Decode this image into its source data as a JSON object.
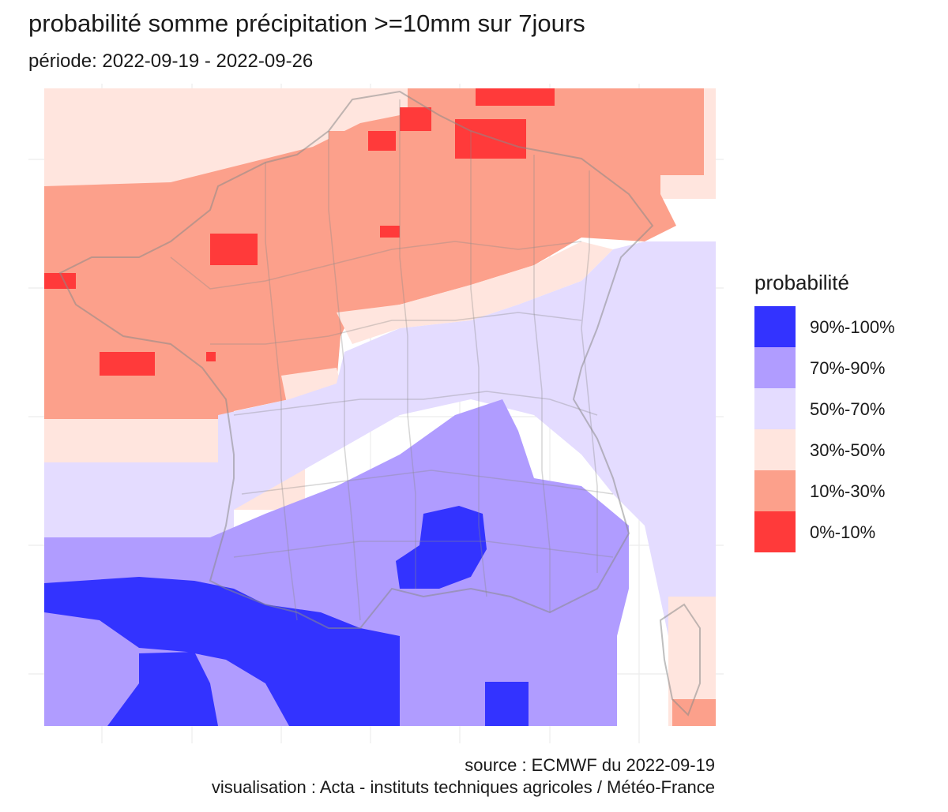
{
  "title": "probabilité somme précipitation >=10mm sur 7jours",
  "subtitle": "période: 2022-09-19 - 2022-09-26",
  "legend": {
    "title": "probabilité",
    "items": [
      {
        "label": "90%-100%",
        "color": "#3333ff"
      },
      {
        "label": "70%-90%",
        "color": "#b09cff"
      },
      {
        "label": "50%-70%",
        "color": "#e4dcff"
      },
      {
        "label": "30%-50%",
        "color": "#ffe5de"
      },
      {
        "label": "10%-30%",
        "color": "#fca08b"
      },
      {
        "label": "0%-10%",
        "color": "#ff3a3a"
      }
    ]
  },
  "caption": {
    "source": "source : ECMWF du 2022-09-19",
    "visualisation": "visualisation : Acta - instituts techniques agricoles / Météo-France"
  }
}
